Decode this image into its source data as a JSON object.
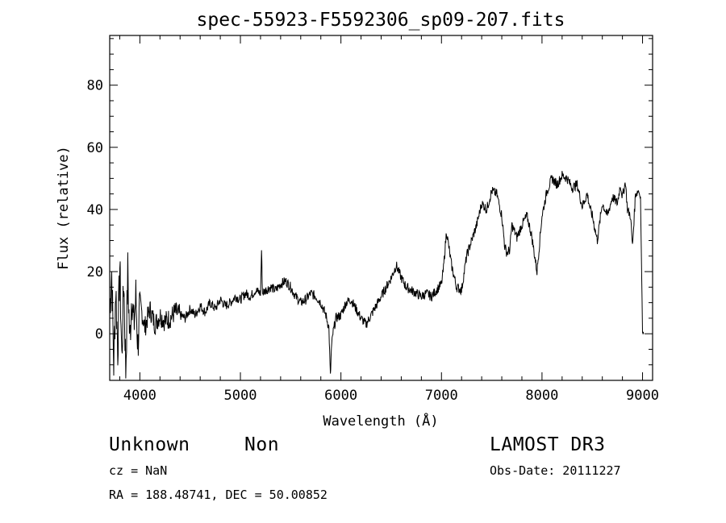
{
  "chart_data": {
    "type": "line",
    "title": "spec-55923-F5592306_sp09-207.fits",
    "xlabel": "Wavelength (Å)",
    "ylabel": "Flux (relative)",
    "xlim": [
      3700,
      9100
    ],
    "ylim": [
      -15,
      96
    ],
    "xticks": [
      4000,
      5000,
      6000,
      7000,
      8000,
      9000
    ],
    "yticks": [
      0,
      20,
      40,
      60,
      80
    ],
    "series": [
      {
        "name": "flux",
        "x": [
          3700,
          3720,
          3740,
          3760,
          3780,
          3800,
          3820,
          3840,
          3860,
          3880,
          3900,
          3920,
          3940,
          3960,
          3980,
          4000,
          4050,
          4100,
          4150,
          4200,
          4250,
          4300,
          4350,
          4400,
          4450,
          4500,
          4550,
          4600,
          4650,
          4700,
          4750,
          4800,
          4850,
          4900,
          4950,
          5000,
          5050,
          5100,
          5150,
          5200,
          5210,
          5220,
          5250,
          5300,
          5350,
          5400,
          5450,
          5500,
          5550,
          5600,
          5650,
          5700,
          5750,
          5800,
          5850,
          5880,
          5895,
          5905,
          5920,
          5950,
          6000,
          6050,
          6100,
          6150,
          6200,
          6250,
          6300,
          6350,
          6400,
          6450,
          6500,
          6550,
          6600,
          6650,
          6700,
          6750,
          6800,
          6850,
          6900,
          6950,
          7000,
          7020,
          7050,
          7100,
          7150,
          7200,
          7250,
          7300,
          7350,
          7400,
          7450,
          7500,
          7550,
          7600,
          7630,
          7650,
          7680,
          7700,
          7750,
          7800,
          7850,
          7880,
          7900,
          7950,
          8000,
          8050,
          8100,
          8150,
          8200,
          8250,
          8300,
          8350,
          8400,
          8450,
          8480,
          8500,
          8550,
          8600,
          8650,
          8700,
          8750,
          8780,
          8800,
          8830,
          8850,
          8880,
          8900,
          8930,
          8960,
          8980,
          9000,
          9010
        ],
        "values": [
          8,
          20,
          -10,
          15,
          -5,
          22,
          -8,
          18,
          -12,
          20,
          -3,
          14,
          2,
          12,
          -4,
          10,
          2,
          8,
          3,
          6,
          4,
          5,
          7,
          6,
          5,
          8,
          6,
          9,
          7,
          10,
          8,
          11,
          9,
          10,
          12,
          11,
          13,
          12,
          14,
          13,
          27,
          13,
          14,
          15,
          14,
          16,
          17,
          15,
          12,
          10,
          11,
          13,
          12,
          10,
          6,
          2,
          -14,
          -5,
          0,
          5,
          6,
          10,
          11,
          8,
          5,
          3,
          6,
          9,
          12,
          15,
          18,
          22,
          18,
          15,
          14,
          13,
          12,
          13,
          12,
          14,
          16,
          21,
          33,
          22,
          15,
          14,
          25,
          30,
          35,
          42,
          40,
          46,
          45,
          38,
          28,
          26,
          27,
          35,
          31,
          35,
          38,
          34,
          31,
          20,
          38,
          46,
          50,
          48,
          51,
          50,
          47,
          48,
          41,
          45,
          40,
          38,
          30,
          42,
          38,
          44,
          42,
          48,
          44,
          49,
          40,
          38,
          28,
          45,
          46,
          44,
          1,
          0
        ]
      }
    ]
  },
  "labels": {
    "object_class": "Unknown",
    "object_subclass": "Non",
    "survey": "LAMOST DR3",
    "cz": "cz = NaN",
    "obs_date": "Obs-Date: 20111227",
    "coords": "RA = 188.48741, DEC =  50.00852"
  }
}
